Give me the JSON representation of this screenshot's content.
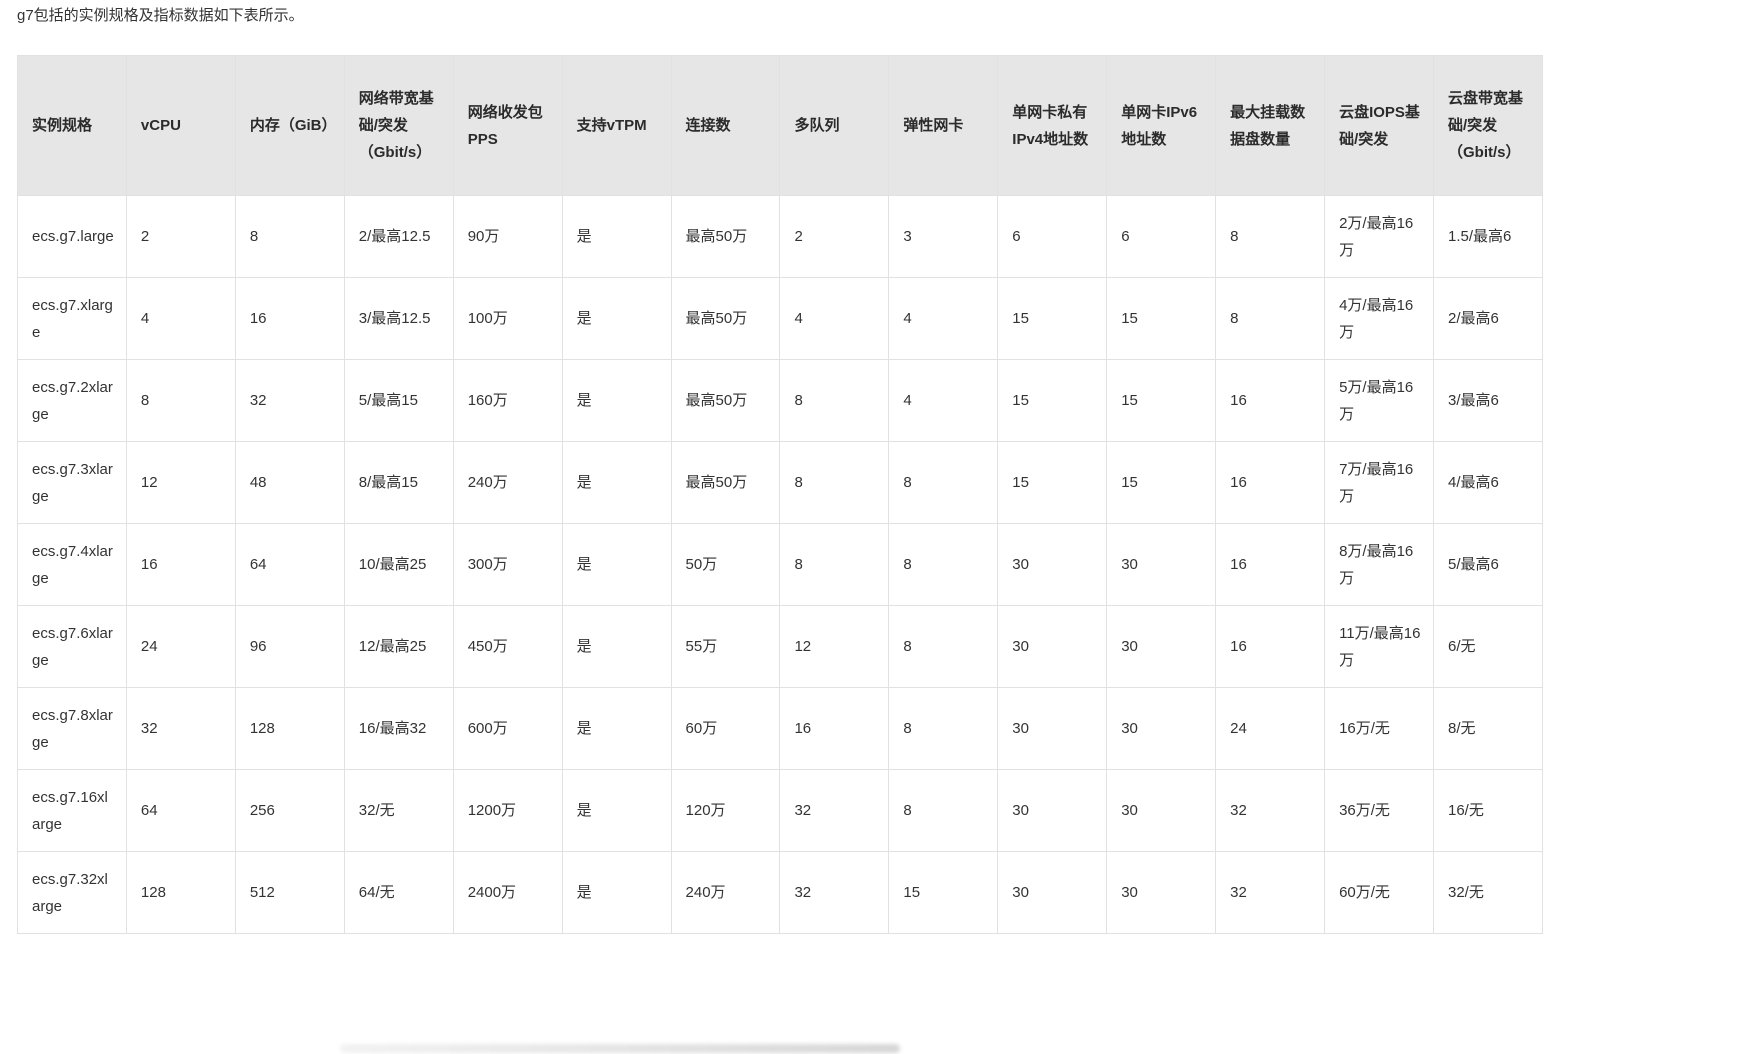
{
  "intro": "g7包括的实例规格及指标数据如下表所示。",
  "table": {
    "columns": [
      "实例规格",
      "vCPU",
      "内存（GiB）",
      "网络带宽基础/突发（Gbit/s）",
      "网络收发包PPS",
      "支持vTPM",
      "连接数",
      "多队列",
      "弹性网卡",
      "单网卡私有IPv4地址数",
      "单网卡IPv6地址数",
      "最大挂载数据盘数量",
      "云盘IOPS基础/突发",
      "云盘带宽基础/突发（Gbit/s）"
    ],
    "rows": [
      [
        "ecs.g7.large",
        "2",
        "8",
        "2/最高12.5",
        "90万",
        "是",
        "最高50万",
        "2",
        "3",
        "6",
        "6",
        "8",
        "2万/最高16万",
        "1.5/最高6"
      ],
      [
        "ecs.g7.xlarge",
        "4",
        "16",
        "3/最高12.5",
        "100万",
        "是",
        "最高50万",
        "4",
        "4",
        "15",
        "15",
        "8",
        "4万/最高16万",
        "2/最高6"
      ],
      [
        "ecs.g7.2xlarge",
        "8",
        "32",
        "5/最高15",
        "160万",
        "是",
        "最高50万",
        "8",
        "4",
        "15",
        "15",
        "16",
        "5万/最高16万",
        "3/最高6"
      ],
      [
        "ecs.g7.3xlarge",
        "12",
        "48",
        "8/最高15",
        "240万",
        "是",
        "最高50万",
        "8",
        "8",
        "15",
        "15",
        "16",
        "7万/最高16万",
        "4/最高6"
      ],
      [
        "ecs.g7.4xlarge",
        "16",
        "64",
        "10/最高25",
        "300万",
        "是",
        "50万",
        "8",
        "8",
        "30",
        "30",
        "16",
        "8万/最高16万",
        "5/最高6"
      ],
      [
        "ecs.g7.6xlarge",
        "24",
        "96",
        "12/最高25",
        "450万",
        "是",
        "55万",
        "12",
        "8",
        "30",
        "30",
        "16",
        "11万/最高16万",
        "6/无"
      ],
      [
        "ecs.g7.8xlarge",
        "32",
        "128",
        "16/最高32",
        "600万",
        "是",
        "60万",
        "16",
        "8",
        "30",
        "30",
        "24",
        "16万/无",
        "8/无"
      ],
      [
        "ecs.g7.16xlarge",
        "64",
        "256",
        "32/无",
        "1200万",
        "是",
        "120万",
        "32",
        "8",
        "30",
        "30",
        "32",
        "36万/无",
        "16/无"
      ],
      [
        "ecs.g7.32xlarge",
        "128",
        "512",
        "64/无",
        "2400万",
        "是",
        "240万",
        "32",
        "15",
        "30",
        "30",
        "32",
        "60万/无",
        "32/无"
      ]
    ]
  }
}
